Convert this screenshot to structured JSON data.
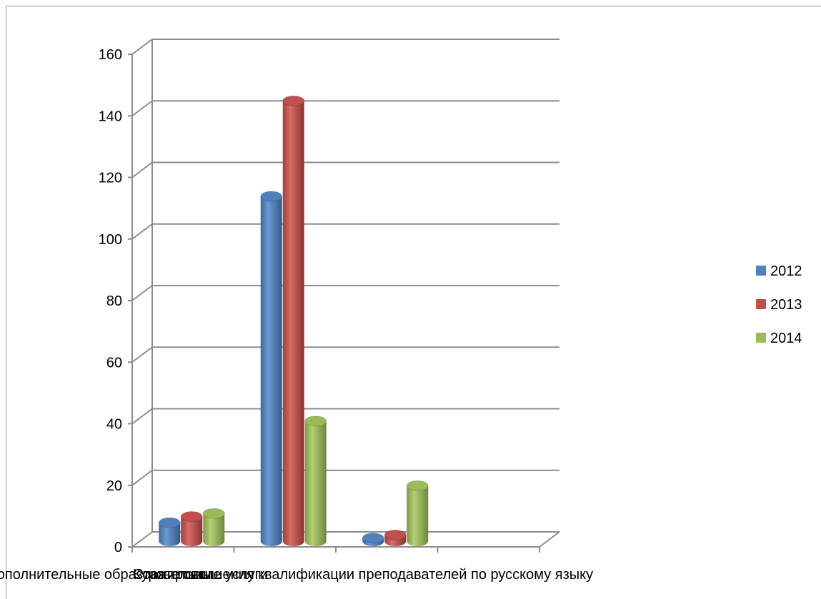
{
  "chart_data": {
    "type": "bar",
    "title": "",
    "xlabel": "",
    "ylabel": "",
    "categories": [
      "Дополнительные образовательные услуги",
      "Стажировки",
      "Курсы повышения квалификации преподавателей по русскому языку"
    ],
    "series": [
      {
        "name": "2012",
        "color": "#4F81BD",
        "values": [
          6,
          112,
          1
        ]
      },
      {
        "name": "2013",
        "color": "#C0504D",
        "values": [
          8,
          143,
          2
        ]
      },
      {
        "name": "2014",
        "color": "#9BBB59",
        "values": [
          9,
          39,
          18
        ]
      }
    ],
    "ylim": [
      0,
      160
    ],
    "yticks": [
      "0",
      "20",
      "40",
      "60",
      "80",
      "100",
      "120",
      "140",
      "160"
    ],
    "grid": true,
    "legend_position": "right"
  }
}
